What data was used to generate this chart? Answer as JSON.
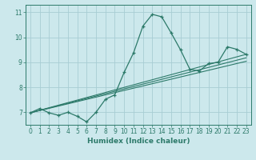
{
  "xlabel": "Humidex (Indice chaleur)",
  "bg_color": "#cce8ec",
  "grid_color": "#a8cdd4",
  "line_color": "#2d7a6a",
  "xlim": [
    -0.5,
    23.5
  ],
  "ylim": [
    6.5,
    11.3
  ],
  "yticks": [
    7,
    8,
    9,
    10,
    11
  ],
  "xticks": [
    0,
    1,
    2,
    3,
    4,
    5,
    6,
    7,
    8,
    9,
    10,
    11,
    12,
    13,
    14,
    15,
    16,
    17,
    18,
    19,
    20,
    21,
    22,
    23
  ],
  "curve_x": [
    0,
    1,
    2,
    3,
    4,
    5,
    6,
    7,
    8,
    9,
    10,
    11,
    12,
    13,
    14,
    15,
    16,
    17,
    18,
    19,
    20,
    21,
    22,
    23
  ],
  "curve_y": [
    6.98,
    7.15,
    6.98,
    6.88,
    7.0,
    6.84,
    6.62,
    7.0,
    7.52,
    7.7,
    8.6,
    9.38,
    10.45,
    10.92,
    10.82,
    10.18,
    9.5,
    8.72,
    8.65,
    8.95,
    9.0,
    9.62,
    9.52,
    9.32
  ],
  "line1_x": [
    0,
    23
  ],
  "line1_y": [
    6.98,
    9.32
  ],
  "line2_x": [
    0,
    23
  ],
  "line2_y": [
    6.98,
    9.18
  ],
  "line3_x": [
    0,
    23
  ],
  "line3_y": [
    6.98,
    9.04
  ]
}
